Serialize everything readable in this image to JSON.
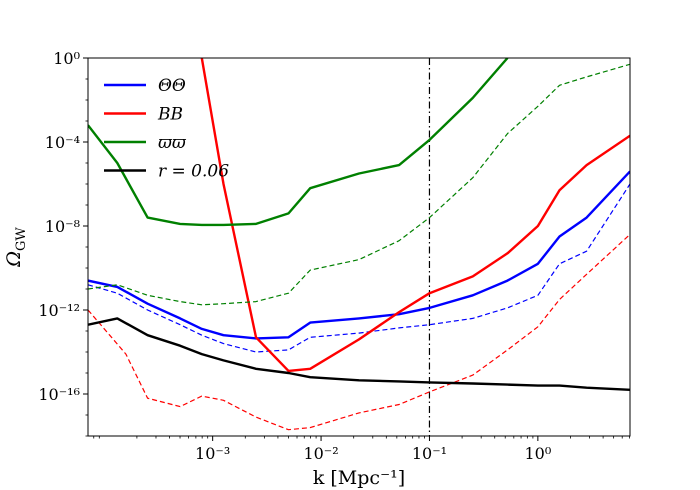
{
  "chart_data": {
    "type": "line",
    "title": "",
    "xlabel": "k [Mpc⁻¹]",
    "ylabel": "Ω_GW",
    "xscale": "log",
    "yscale": "log",
    "xlim_log10": [
      -4.15,
      0.85
    ],
    "ylim_log10": [
      -18,
      0
    ],
    "x_ticks": [
      {
        "log10": -3,
        "label": "10⁻³"
      },
      {
        "log10": -2,
        "label": "10⁻²"
      },
      {
        "log10": -1,
        "label": "10⁻¹"
      },
      {
        "log10": 0,
        "label": "10⁰"
      }
    ],
    "y_ticks": [
      {
        "log10": 0,
        "label": "10⁰"
      },
      {
        "log10": -4,
        "label": "10⁻⁴"
      },
      {
        "log10": -8,
        "label": "10⁻⁸"
      },
      {
        "log10": -12,
        "label": "10⁻¹²"
      },
      {
        "log10": -16,
        "label": "10⁻¹⁶"
      }
    ],
    "vline": {
      "log10_x": -1,
      "style": "dash-dot",
      "color": "#000000"
    },
    "legend_position": "upper-left",
    "series": [
      {
        "name": "ΘΘ",
        "color": "#0000ff",
        "style": "solid",
        "in_legend": true,
        "log10_x": [
          -4.15,
          -3.88,
          -3.6,
          -3.3,
          -3.1,
          -2.9,
          -2.6,
          -2.3,
          -2.1,
          -1.65,
          -1.28,
          -1.0,
          -0.6,
          -0.28,
          0.0,
          0.2,
          0.45,
          0.85
        ],
        "log10_y": [
          -10.6,
          -10.9,
          -11.7,
          -12.4,
          -12.9,
          -13.2,
          -13.35,
          -13.3,
          -12.6,
          -12.4,
          -12.2,
          -11.9,
          -11.3,
          -10.6,
          -9.8,
          -8.5,
          -7.6,
          -5.4
        ]
      },
      {
        "name": "ΘΘ (dashed)",
        "color": "#0000ff",
        "style": "dashed",
        "in_legend": false,
        "log10_x": [
          -4.15,
          -3.88,
          -3.6,
          -3.3,
          -3.1,
          -2.9,
          -2.6,
          -2.3,
          -2.1,
          -1.65,
          -1.28,
          -1.0,
          -0.6,
          -0.28,
          0.0,
          0.2,
          0.45,
          0.85
        ],
        "log10_y": [
          -10.8,
          -11.2,
          -12.0,
          -12.7,
          -13.2,
          -13.6,
          -14.0,
          -13.9,
          -13.3,
          -13.1,
          -12.85,
          -12.7,
          -12.4,
          -11.9,
          -11.3,
          -9.8,
          -9.2,
          -6.0
        ]
      },
      {
        "name": "BB",
        "color": "#ff0000",
        "style": "solid",
        "in_legend": true,
        "log10_x": [
          -3.1,
          -2.9,
          -2.6,
          -2.3,
          -2.1,
          -1.65,
          -1.28,
          -1.0,
          -0.6,
          -0.28,
          0.0,
          0.2,
          0.45,
          0.85
        ],
        "log10_y": [
          0.0,
          -6.0,
          -13.3,
          -14.9,
          -14.8,
          -13.4,
          -12.1,
          -11.2,
          -10.4,
          -9.3,
          -8.0,
          -6.3,
          -5.1,
          -3.7
        ]
      },
      {
        "name": "BB (dashed)",
        "color": "#ff0000",
        "style": "dashed",
        "in_legend": false,
        "log10_x": [
          -4.15,
          -3.95,
          -3.8,
          -3.6,
          -3.3,
          -3.1,
          -2.9,
          -2.6,
          -2.3,
          -2.1,
          -1.65,
          -1.28,
          -1.0,
          -0.6,
          -0.28,
          0.0,
          0.2,
          0.45,
          0.85
        ],
        "log10_y": [
          -12.0,
          -13.2,
          -14.1,
          -16.2,
          -16.6,
          -16.1,
          -16.3,
          -17.1,
          -17.7,
          -17.6,
          -16.9,
          -16.5,
          -15.9,
          -15.1,
          -13.9,
          -12.8,
          -11.5,
          -10.3,
          -8.4
        ]
      },
      {
        "name": "ϖϖ",
        "color": "#008000",
        "style": "solid",
        "in_legend": true,
        "log10_x": [
          -4.15,
          -3.88,
          -3.6,
          -3.3,
          -3.1,
          -2.9,
          -2.6,
          -2.3,
          -2.1,
          -1.65,
          -1.28,
          -1.0,
          -0.6,
          -0.28
        ],
        "log10_y": [
          -3.2,
          -5.0,
          -7.6,
          -7.9,
          -7.95,
          -7.95,
          -7.9,
          -7.4,
          -6.2,
          -5.5,
          -5.1,
          -3.9,
          -1.9,
          0.0
        ]
      },
      {
        "name": "ϖϖ (dashed)",
        "color": "#008000",
        "style": "dashed",
        "in_legend": false,
        "log10_x": [
          -4.15,
          -3.88,
          -3.6,
          -3.3,
          -3.1,
          -2.9,
          -2.6,
          -2.3,
          -2.1,
          -1.65,
          -1.28,
          -1.0,
          -0.6,
          -0.28,
          0.0,
          0.2,
          0.45,
          0.85
        ],
        "log10_y": [
          -11.0,
          -10.8,
          -11.3,
          -11.6,
          -11.75,
          -11.7,
          -11.6,
          -11.2,
          -10.1,
          -9.6,
          -8.7,
          -7.6,
          -5.7,
          -3.6,
          -2.3,
          -1.3,
          -0.9,
          -0.3
        ]
      },
      {
        "name": "r = 0.06",
        "color": "#000000",
        "style": "solid",
        "in_legend": true,
        "log10_x": [
          -4.15,
          -3.88,
          -3.6,
          -3.3,
          -3.1,
          -2.9,
          -2.6,
          -2.3,
          -2.1,
          -1.65,
          -1.28,
          -1.0,
          -0.6,
          -0.28,
          0.0,
          0.2,
          0.45,
          0.85
        ],
        "log10_y": [
          -12.7,
          -12.4,
          -13.2,
          -13.7,
          -14.1,
          -14.4,
          -14.8,
          -15.0,
          -15.2,
          -15.35,
          -15.4,
          -15.45,
          -15.5,
          -15.55,
          -15.6,
          -15.6,
          -15.7,
          -15.8
        ]
      }
    ]
  }
}
